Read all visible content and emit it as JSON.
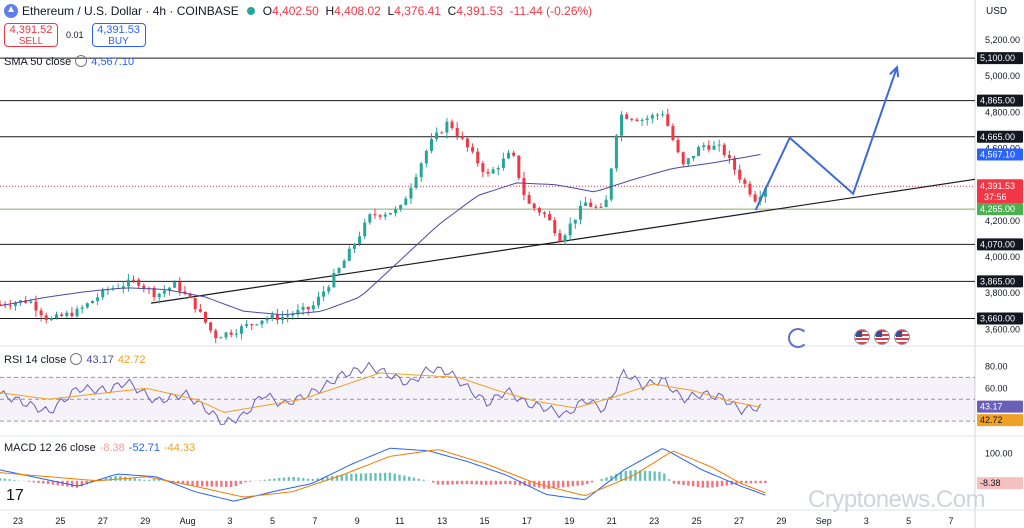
{
  "header": {
    "symbol": "Ethereum / U.S. Dollar · 4h · COINBASE",
    "ohlc": {
      "o_label": "O",
      "o": "4,402.50",
      "h_label": "H",
      "h": "4,408.02",
      "l_label": "L",
      "l": "4,376.41",
      "c_label": "C",
      "c": "4,391.53",
      "change": "-11.44 (-0.26%)"
    }
  },
  "sell_button": {
    "price": "4,391.52",
    "label": "SELL"
  },
  "buy_button": {
    "price": "4,391.53",
    "label": "BUY"
  },
  "spread": "0.01",
  "currency": "USD",
  "sma_legend": {
    "name": "SMA 50 close",
    "value": "4,567.10"
  },
  "rsi_legend": {
    "name": "RSI 14 close",
    "value": "43.17",
    "ma_value": "42.72"
  },
  "macd_legend": {
    "name": "MACD 12 26 close",
    "hist": "-8.38",
    "macd": "-52.71",
    "signal": "-44.33"
  },
  "watermark": "Cryptonews.Com",
  "colors": {
    "up": "#26a69a",
    "down": "#f23645",
    "sma": "#4a4aa8",
    "projection": "#3a6bd6",
    "rsi": "#6a5fb8",
    "rsi_ma": "#f0a026",
    "macd": "#2962ff",
    "signal": "#f57c00"
  },
  "chart_data": [
    {
      "type": "candlestick",
      "title": "Ethereum / U.S. Dollar · 4h · COINBASE",
      "ylim": [
        3530,
        5300
      ],
      "y_ticks": [
        "5,200.00",
        "5,000.00",
        "4,800.00",
        "4,600.00",
        "4,400.00",
        "4,200.00",
        "4,000.00",
        "3,800.00",
        "3,600.00"
      ],
      "x_ticks": [
        "23",
        "25",
        "27",
        "29",
        "Aug",
        "3",
        "5",
        "7",
        "9",
        "11",
        "13",
        "15",
        "17",
        "19",
        "21",
        "23",
        "25",
        "27",
        "29",
        "Sep",
        "3",
        "5",
        "7"
      ],
      "horizontal_levels": [
        5100,
        4865,
        4665,
        4265,
        4070,
        3865,
        3660
      ],
      "level_labels": [
        "5,100.00",
        "4,865.00",
        "4,665.00",
        "4,265.00",
        "4,070.00",
        "3,865.00",
        "3,660.00"
      ],
      "last_price": {
        "value": 4391.53,
        "label": "4,391.53",
        "countdown": "37:56"
      },
      "sma50_last": {
        "value": 4567.1,
        "label": "4,567.10"
      },
      "trendline": [
        [
          0.155,
          3745
        ],
        [
          1.0,
          4430
        ]
      ],
      "projection_path": [
        [
          0.775,
          4260
        ],
        [
          0.81,
          4660
        ],
        [
          0.875,
          4350
        ],
        [
          0.92,
          5050
        ]
      ],
      "price_anchors": [
        [
          0.0,
          3740
        ],
        [
          0.03,
          3760
        ],
        [
          0.05,
          3650
        ],
        [
          0.08,
          3700
        ],
        [
          0.11,
          3820
        ],
        [
          0.14,
          3870
        ],
        [
          0.16,
          3790
        ],
        [
          0.18,
          3850
        ],
        [
          0.2,
          3730
        ],
        [
          0.22,
          3560
        ],
        [
          0.24,
          3590
        ],
        [
          0.27,
          3660
        ],
        [
          0.29,
          3670
        ],
        [
          0.32,
          3720
        ],
        [
          0.35,
          3950
        ],
        [
          0.38,
          4230
        ],
        [
          0.41,
          4260
        ],
        [
          0.44,
          4620
        ],
        [
          0.46,
          4750
        ],
        [
          0.48,
          4600
        ],
        [
          0.5,
          4450
        ],
        [
          0.525,
          4580
        ],
        [
          0.54,
          4300
        ],
        [
          0.56,
          4230
        ],
        [
          0.575,
          4100
        ],
        [
          0.6,
          4300
        ],
        [
          0.62,
          4250
        ],
        [
          0.635,
          4790
        ],
        [
          0.66,
          4760
        ],
        [
          0.68,
          4800
        ],
        [
          0.7,
          4500
        ],
        [
          0.72,
          4620
        ],
        [
          0.74,
          4600
        ],
        [
          0.76,
          4430
        ],
        [
          0.775,
          4320
        ],
        [
          0.785,
          4390
        ]
      ],
      "sma50_anchors": [
        [
          0.0,
          3730
        ],
        [
          0.05,
          3780
        ],
        [
          0.09,
          3810
        ],
        [
          0.13,
          3830
        ],
        [
          0.17,
          3820
        ],
        [
          0.21,
          3780
        ],
        [
          0.25,
          3700
        ],
        [
          0.29,
          3680
        ],
        [
          0.33,
          3700
        ],
        [
          0.37,
          3780
        ],
        [
          0.41,
          3980
        ],
        [
          0.45,
          4180
        ],
        [
          0.49,
          4340
        ],
        [
          0.53,
          4410
        ],
        [
          0.57,
          4400
        ],
        [
          0.61,
          4360
        ],
        [
          0.65,
          4430
        ],
        [
          0.69,
          4490
        ],
        [
          0.73,
          4520
        ],
        [
          0.78,
          4567
        ]
      ]
    },
    {
      "type": "line",
      "title": "RSI 14 close",
      "ylim": [
        20,
        95
      ],
      "y_ticks": [
        "80.00",
        "60.00"
      ],
      "band": [
        30,
        70
      ],
      "last_labels": [
        "43.17",
        "42.72"
      ],
      "rsi_anchors": [
        [
          0.0,
          55
        ],
        [
          0.03,
          45
        ],
        [
          0.05,
          38
        ],
        [
          0.08,
          60
        ],
        [
          0.11,
          58
        ],
        [
          0.13,
          66
        ],
        [
          0.16,
          48
        ],
        [
          0.19,
          55
        ],
        [
          0.21,
          42
        ],
        [
          0.23,
          28
        ],
        [
          0.25,
          35
        ],
        [
          0.27,
          55
        ],
        [
          0.29,
          45
        ],
        [
          0.31,
          52
        ],
        [
          0.33,
          60
        ],
        [
          0.35,
          72
        ],
        [
          0.38,
          80
        ],
        [
          0.4,
          72
        ],
        [
          0.42,
          64
        ],
        [
          0.44,
          78
        ],
        [
          0.46,
          75
        ],
        [
          0.48,
          60
        ],
        [
          0.5,
          46
        ],
        [
          0.52,
          58
        ],
        [
          0.54,
          46
        ],
        [
          0.56,
          42
        ],
        [
          0.58,
          35
        ],
        [
          0.6,
          50
        ],
        [
          0.62,
          40
        ],
        [
          0.64,
          75
        ],
        [
          0.66,
          62
        ],
        [
          0.68,
          68
        ],
        [
          0.7,
          50
        ],
        [
          0.72,
          55
        ],
        [
          0.74,
          52
        ],
        [
          0.76,
          40
        ],
        [
          0.78,
          43
        ]
      ],
      "ma_anchors": [
        [
          0.0,
          56
        ],
        [
          0.05,
          50
        ],
        [
          0.1,
          55
        ],
        [
          0.15,
          60
        ],
        [
          0.2,
          50
        ],
        [
          0.23,
          38
        ],
        [
          0.27,
          44
        ],
        [
          0.31,
          50
        ],
        [
          0.35,
          62
        ],
        [
          0.39,
          74
        ],
        [
          0.43,
          72
        ],
        [
          0.47,
          70
        ],
        [
          0.51,
          58
        ],
        [
          0.55,
          48
        ],
        [
          0.59,
          42
        ],
        [
          0.63,
          52
        ],
        [
          0.67,
          64
        ],
        [
          0.71,
          58
        ],
        [
          0.75,
          48
        ],
        [
          0.78,
          42.7
        ]
      ]
    },
    {
      "type": "bar",
      "title": "MACD 12 26 close",
      "y_ticks": [
        "100.00"
      ],
      "last_label": "-8.38",
      "macd_anchors": [
        [
          0.0,
          40
        ],
        [
          0.04,
          10
        ],
        [
          0.08,
          -20
        ],
        [
          0.12,
          25
        ],
        [
          0.16,
          15
        ],
        [
          0.2,
          -40
        ],
        [
          0.24,
          -75
        ],
        [
          0.28,
          -40
        ],
        [
          0.32,
          -10
        ],
        [
          0.36,
          60
        ],
        [
          0.4,
          120
        ],
        [
          0.44,
          110
        ],
        [
          0.48,
          70
        ],
        [
          0.52,
          20
        ],
        [
          0.56,
          -50
        ],
        [
          0.6,
          -70
        ],
        [
          0.64,
          40
        ],
        [
          0.68,
          120
        ],
        [
          0.72,
          40
        ],
        [
          0.76,
          -20
        ],
        [
          0.785,
          -52.71
        ]
      ],
      "signal_anchors": [
        [
          0.0,
          30
        ],
        [
          0.05,
          15
        ],
        [
          0.1,
          0
        ],
        [
          0.15,
          15
        ],
        [
          0.2,
          -20
        ],
        [
          0.25,
          -60
        ],
        [
          0.3,
          -40
        ],
        [
          0.35,
          20
        ],
        [
          0.4,
          90
        ],
        [
          0.45,
          115
        ],
        [
          0.5,
          60
        ],
        [
          0.55,
          -10
        ],
        [
          0.6,
          -55
        ],
        [
          0.65,
          20
        ],
        [
          0.69,
          110
        ],
        [
          0.73,
          50
        ],
        [
          0.76,
          -10
        ],
        [
          0.785,
          -44.33
        ]
      ]
    }
  ]
}
